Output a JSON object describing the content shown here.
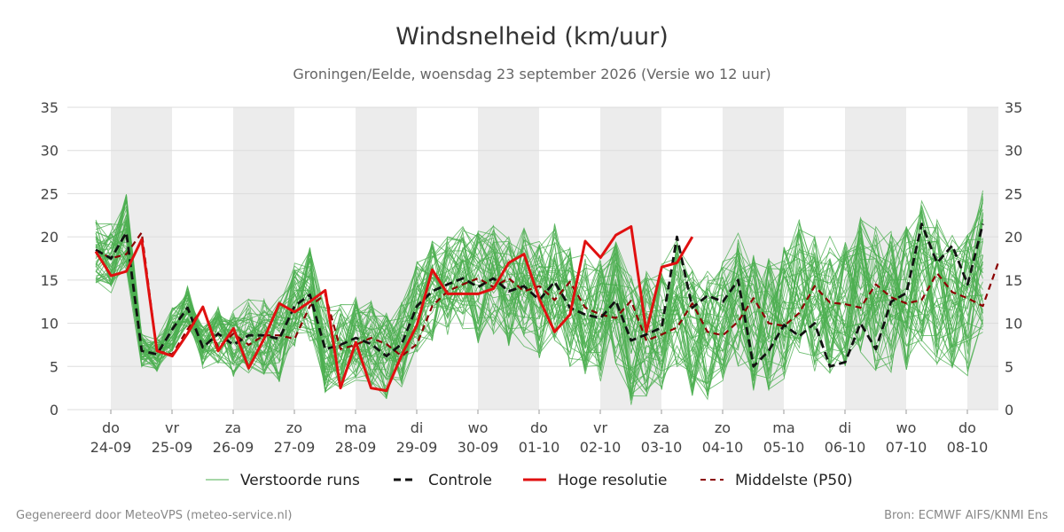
{
  "chart_data": {
    "type": "line",
    "title": "Windsnelheid (km/uur)",
    "subtitle": "Groningen/Eelde, woensdag 23 september 2026 (Versie wo 12 uur)",
    "ylim": [
      0,
      35
    ],
    "yticks": [
      0,
      5,
      10,
      15,
      20,
      25,
      30,
      35
    ],
    "days": [
      {
        "dow": "do",
        "date": "24-09"
      },
      {
        "dow": "vr",
        "date": "25-09"
      },
      {
        "dow": "za",
        "date": "26-09"
      },
      {
        "dow": "zo",
        "date": "27-09"
      },
      {
        "dow": "ma",
        "date": "28-09"
      },
      {
        "dow": "di",
        "date": "29-09"
      },
      {
        "dow": "wo",
        "date": "30-09"
      },
      {
        "dow": "do",
        "date": "01-10"
      },
      {
        "dow": "vr",
        "date": "02-10"
      },
      {
        "dow": "za",
        "date": "03-10"
      },
      {
        "dow": "zo",
        "date": "04-10"
      },
      {
        "dow": "ma",
        "date": "05-10"
      },
      {
        "dow": "di",
        "date": "06-10"
      },
      {
        "dow": "wo",
        "date": "07-10"
      },
      {
        "dow": "do",
        "date": "08-10"
      }
    ],
    "shaded_day_indices": [
      0,
      2,
      4,
      6,
      8,
      10,
      12,
      14
    ],
    "grid": true,
    "legend_position": "bottom",
    "series": [
      {
        "name": "Verstoorde runs",
        "color": "#4caf50",
        "ensemble_center": [
          18.5,
          17.5,
          20.5,
          6.8,
          6.4,
          9.3,
          11.8,
          7.2,
          8.8,
          7.5,
          8.6,
          8.6,
          8.2,
          12.0,
          13.3,
          7.0,
          7.5,
          8.3,
          7.6,
          6.2,
          7.6,
          12.0,
          13.7,
          14.5,
          15.2,
          14.2,
          15.2,
          13.7,
          14.3,
          12.7,
          14.8,
          11.8,
          11.0,
          10.6,
          12.6,
          8.0,
          8.7,
          9.5,
          12.3,
          9.0,
          8.6,
          10.2,
          12.9,
          10.0,
          9.7,
          11.2,
          14.3,
          12.4,
          12.2,
          11.8,
          14.5,
          13.0,
          12.3,
          12.7,
          15.8,
          13.6,
          12.9,
          12.0,
          17.0
        ],
        "ensemble_spread": [
          4.0,
          4.0,
          4.5,
          2.0,
          2.0,
          2.5,
          2.5,
          2.5,
          3.5,
          4.0,
          4.5,
          4.5,
          5.0,
          5.0,
          5.5,
          5.0,
          5.0,
          5.0,
          5.0,
          5.0,
          5.0,
          5.5,
          6.0,
          6.0,
          6.0,
          6.5,
          6.5,
          6.5,
          7.0,
          7.0,
          7.0,
          7.0,
          7.0,
          7.5,
          7.5,
          7.5,
          7.5,
          7.5,
          7.5,
          7.5,
          7.5,
          7.5,
          8.0,
          8.0,
          8.0,
          8.0,
          8.0,
          8.0,
          8.0,
          8.0,
          8.0,
          8.5,
          8.5,
          8.5,
          8.5,
          8.5,
          8.5,
          8.5,
          8.5
        ],
        "member_count": 50
      },
      {
        "name": "Controle",
        "color": "#111111",
        "values": [
          18.5,
          17.5,
          20.5,
          6.8,
          6.4,
          9.3,
          11.8,
          7.2,
          8.8,
          7.5,
          8.6,
          8.6,
          8.2,
          12.0,
          13.3,
          7.0,
          7.5,
          8.3,
          7.6,
          6.2,
          7.6,
          12.0,
          13.7,
          14.5,
          15.2,
          14.2,
          15.2,
          13.7,
          14.3,
          12.7,
          14.8,
          11.8,
          11.0,
          10.6,
          12.6,
          8.0,
          8.7,
          9.5,
          20.0,
          11.8,
          13.2,
          12.5,
          15.0,
          5.0,
          6.8,
          9.8,
          8.5,
          10.0,
          5.0,
          5.5,
          10.0,
          7.0,
          12.5,
          13.5,
          21.5,
          17.0,
          19.0,
          14.5,
          21.5
        ]
      },
      {
        "name": "Hoge resolutie",
        "color": "#e01010",
        "values": [
          18.3,
          15.5,
          16.0,
          19.7,
          6.8,
          6.2,
          8.8,
          11.9,
          6.8,
          9.4,
          4.8,
          8.2,
          12.3,
          11.3,
          12.5,
          13.8,
          2.5,
          7.8,
          2.5,
          2.2,
          6.3,
          9.8,
          16.2,
          13.4,
          13.4,
          13.4,
          14.0,
          17.0,
          18.0,
          12.8,
          9.0,
          11.0,
          19.5,
          17.6,
          20.2,
          21.2,
          9.0,
          16.5,
          17.0,
          20.0
        ]
      },
      {
        "name": "Middelste (P50)",
        "color": "#8b0000",
        "values": [
          18.5,
          17.5,
          18.0,
          20.5,
          6.8,
          6.4,
          9.3,
          11.8,
          7.2,
          8.8,
          7.5,
          8.6,
          8.6,
          8.2,
          12.0,
          13.3,
          7.0,
          7.5,
          8.3,
          7.6,
          6.2,
          7.6,
          12.0,
          13.7,
          14.5,
          15.2,
          14.2,
          15.2,
          13.7,
          14.3,
          12.7,
          14.8,
          11.8,
          11.0,
          10.6,
          12.6,
          8.0,
          8.7,
          9.5,
          12.3,
          9.0,
          8.6,
          10.2,
          12.9,
          10.0,
          9.7,
          11.2,
          14.3,
          12.4,
          12.2,
          11.8,
          14.5,
          13.0,
          12.3,
          12.7,
          15.8,
          13.6,
          12.9,
          12.0,
          17.0
        ]
      }
    ]
  },
  "legend": {
    "ensemble": "Verstoorde runs",
    "control": "Controle",
    "hires": "Hoge resolutie",
    "median": "Middelste (P50)"
  },
  "footer": {
    "left": "Gegenereerd door MeteoVPS (meteo-service.nl)",
    "right": "Bron: ECMWF AIFS/KNMI Ens"
  }
}
